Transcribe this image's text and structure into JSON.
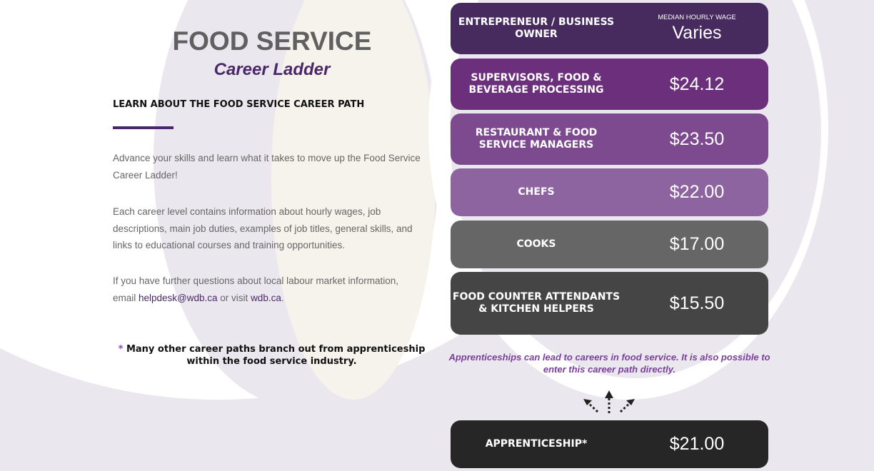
{
  "header": {
    "title": "FOOD SERVICE",
    "subtitle": "Career Ladder"
  },
  "intro": {
    "heading": "LEARN ABOUT THE FOOD SERVICE CAREER PATH",
    "p1": "Advance your skills and learn what it takes to move up the Food Service Career Ladder!",
    "p2": "Each career level contains information about hourly wages, job descriptions, main job duties, examples of job titles, general skills, and links to educational courses and training opportunities.",
    "p3_pre": "If you have further questions about local labour market information, email ",
    "email": "helpdesk@wdb.ca",
    "p3_mid": " or visit ",
    "site": "wdb.ca",
    "p3_end": "."
  },
  "note": {
    "star": "*",
    "text": " Many other career paths branch out from apprenticeship within the food service industry."
  },
  "wage_label": "MEDIAN HOURLY WAGE",
  "careers": [
    {
      "name": "ENTREPRENEUR / BUSINESS OWNER",
      "wage": "Varies",
      "color": "#472a5e"
    },
    {
      "name": "SUPERVISORS, FOOD & BEVERAGE PROCESSING",
      "wage": "$24.12",
      "color": "#6b2f7b"
    },
    {
      "name": "RESTAURANT & FOOD SERVICE MANAGERS",
      "wage": "$23.50",
      "color": "#7d4a8f"
    },
    {
      "name": "CHEFS",
      "wage": "$22.00",
      "color": "#8e64a0"
    },
    {
      "name": "COOKS",
      "wage": "$17.00",
      "color": "#666666"
    },
    {
      "name": "FOOD COUNTER ATTENDANTS & KITCHEN HELPERS",
      "wage": "$15.50",
      "color": "#454545"
    },
    {
      "name": "APPRENTICESHIP*",
      "wage": "$21.00",
      "color": "#262626"
    }
  ],
  "apprentice_note": "Apprenticeships can lead to careers in food service. It is also possible to enter this career path directly."
}
